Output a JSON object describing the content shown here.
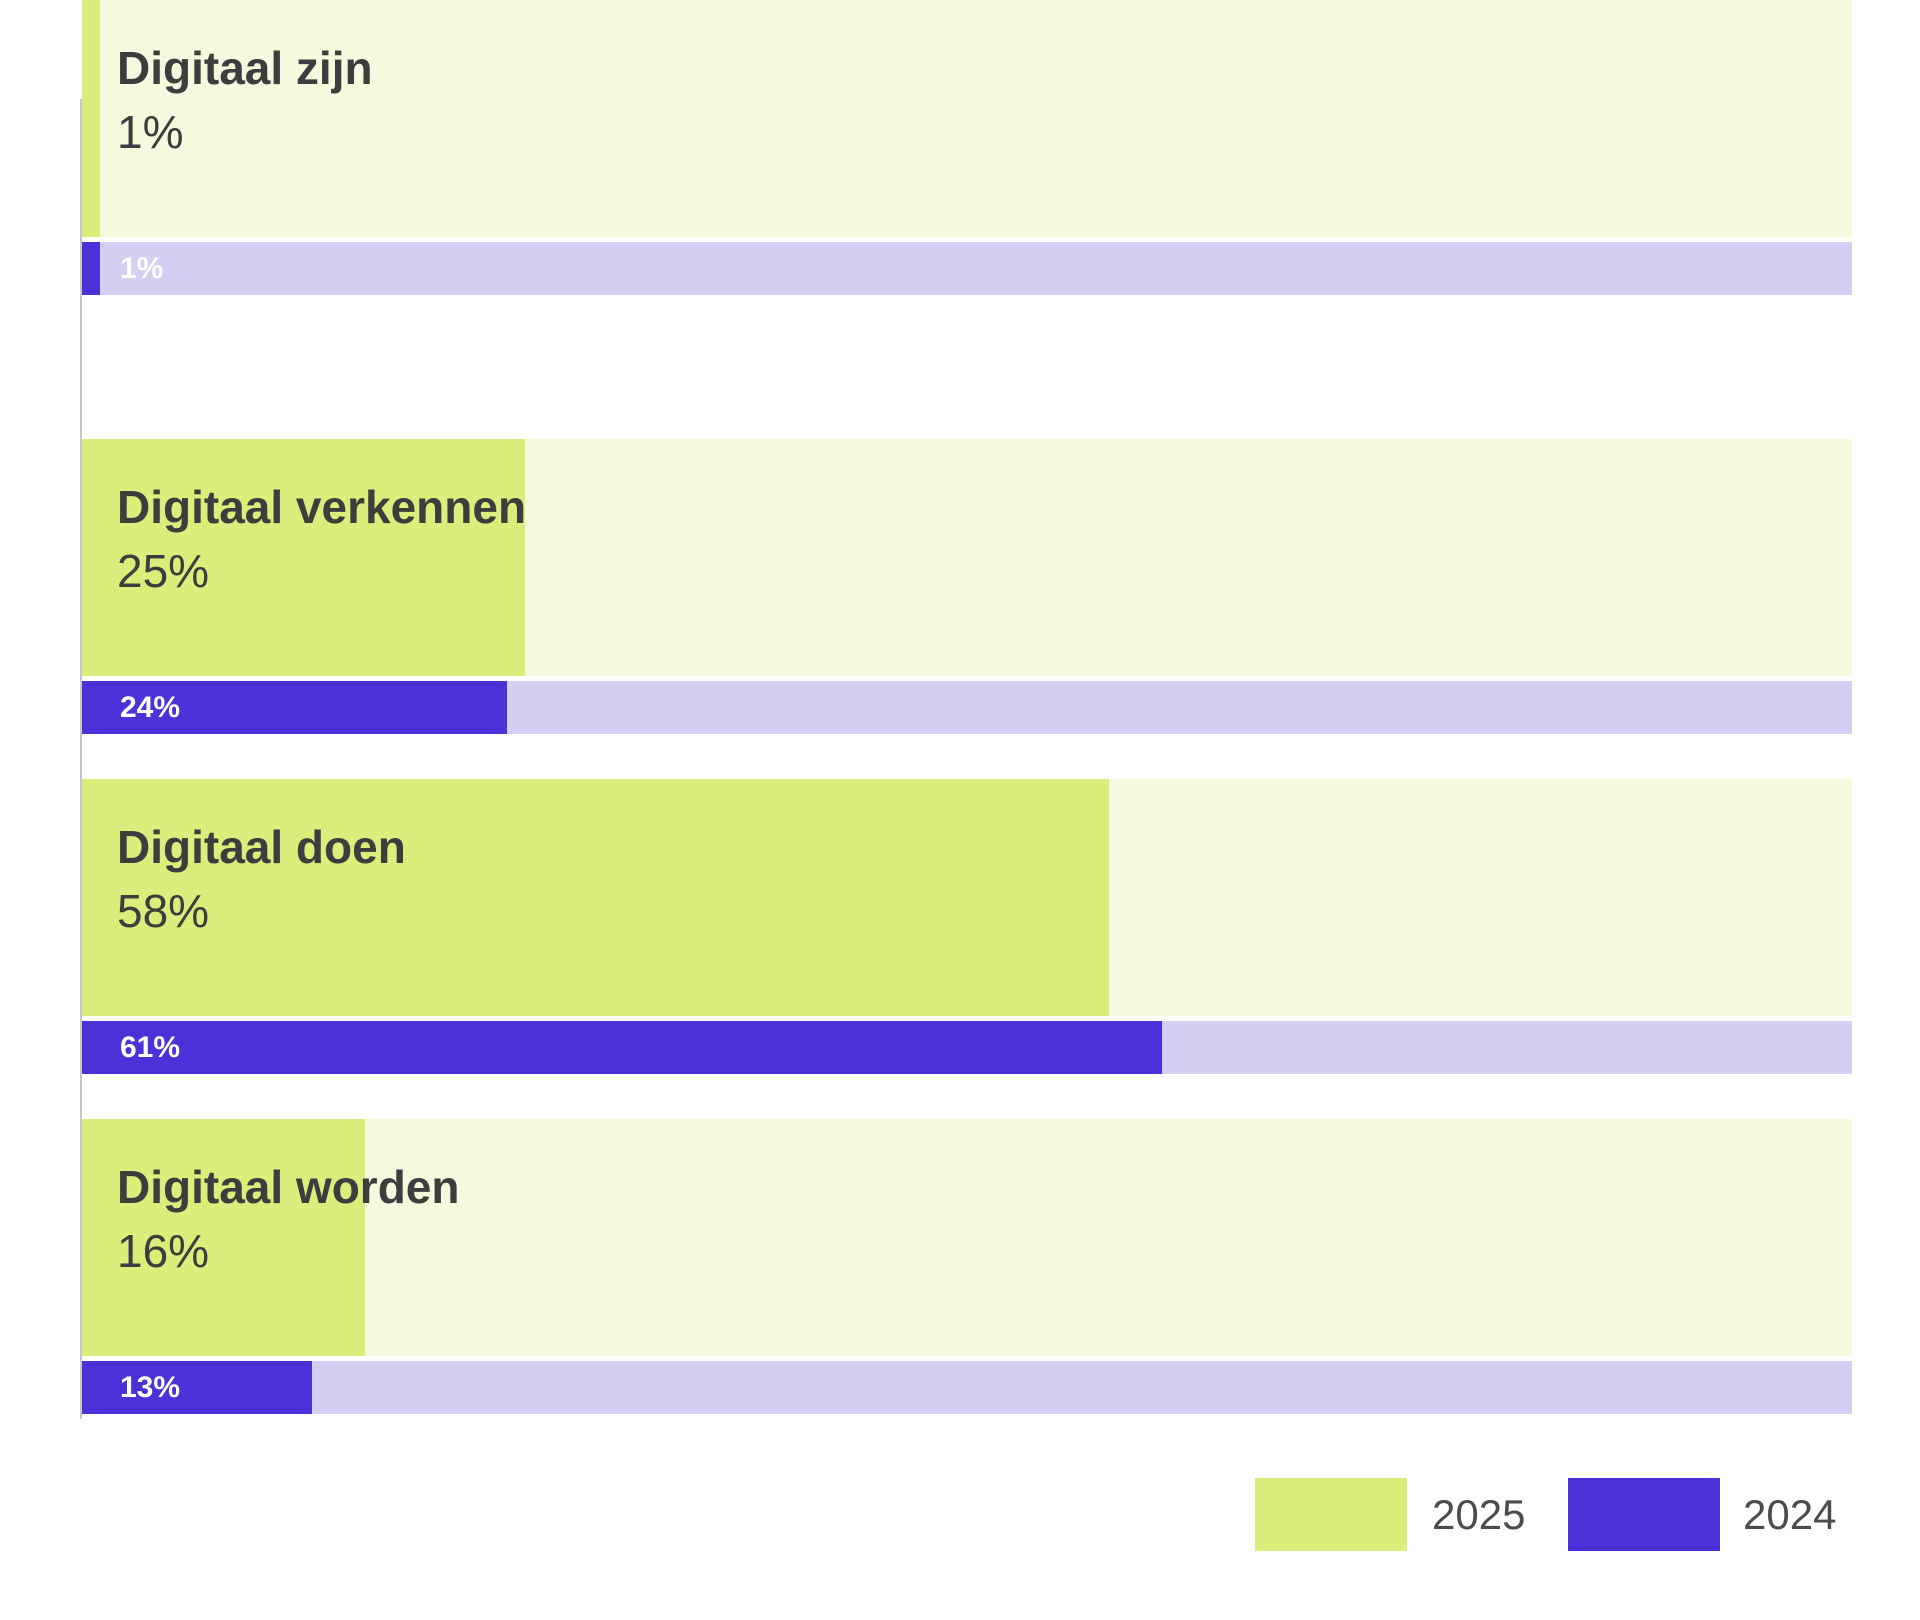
{
  "chart_data": {
    "type": "bar",
    "orientation": "horizontal",
    "unit": "%",
    "xlim": [
      0,
      100
    ],
    "grid": false,
    "legend_position": "bottom-right",
    "categories": [
      "Digitaal verkennen",
      "Digitaal doen",
      "Digitaal worden",
      "Digitaal zijn"
    ],
    "series": [
      {
        "name": "2025",
        "values": [
          25,
          58,
          16,
          1
        ]
      },
      {
        "name": "2024",
        "values": [
          24,
          61,
          13,
          1
        ]
      }
    ],
    "rows": [
      {
        "label": "Digitaal verkennen",
        "y2025": 25,
        "y2025_label": "25%",
        "y2024": 24,
        "y2024_label": "24%"
      },
      {
        "label": "Digitaal doen",
        "y2025": 58,
        "y2025_label": "58%",
        "y2024": 61,
        "y2024_label": "61%"
      },
      {
        "label": "Digitaal worden",
        "y2025": 16,
        "y2025_label": "16%",
        "y2024": 13,
        "y2024_label": "13%"
      },
      {
        "label": "Digitaal zijn",
        "y2025": 1,
        "y2025_label": "1%",
        "y2024": 1,
        "y2024_label": "1%"
      }
    ]
  },
  "legend": {
    "items": [
      {
        "label": "2025",
        "color": "#dbee7b"
      },
      {
        "label": "2024",
        "color": "#4b31d8"
      }
    ]
  },
  "colors": {
    "bar_2025": "#dbee7b",
    "track_2025": "#f5f9de",
    "bar_2024": "#4b31d8",
    "track_2024": "#d5cef3",
    "label_text": "#3d3d3d",
    "bar_value_text": "#ffffff",
    "legend_text": "#4c4c4c",
    "axis_line": "#c6c6c6",
    "background": "#ffffff"
  }
}
